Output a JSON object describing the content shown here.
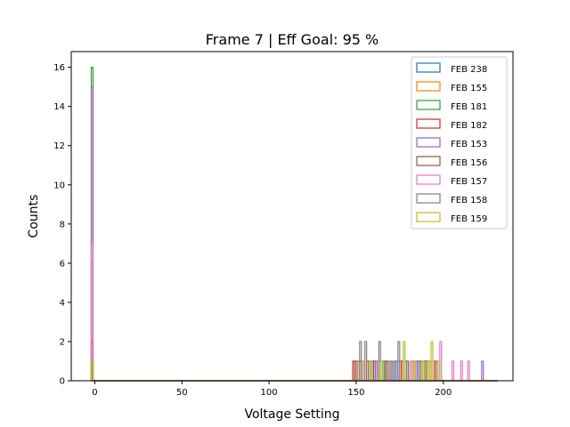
{
  "chart_data": {
    "type": "histogram-step",
    "title": "Frame 7 | Eff Goal: 95 %",
    "xlabel": "Voltage Setting",
    "ylabel": "Counts",
    "xlim": [
      -13.5,
      240
    ],
    "ylim": [
      0,
      16.8
    ],
    "bin_width": 1,
    "x_ticks": [
      0,
      50,
      100,
      150,
      200
    ],
    "y_ticks": [
      0,
      2,
      4,
      6,
      8,
      10,
      12,
      14,
      16
    ],
    "grid": false,
    "legend_position": "upper right",
    "series": [
      {
        "name": "FEB 238",
        "color": "#1f77b4",
        "bins": [
          [
            -2,
            1
          ],
          [
            151,
            1
          ],
          [
            152,
            1
          ],
          [
            158,
            1
          ],
          [
            166,
            1
          ],
          [
            172,
            1
          ],
          [
            184,
            1
          ],
          [
            186,
            1
          ],
          [
            191,
            1
          ]
        ]
      },
      {
        "name": "FEB 155",
        "color": "#ff7f0e",
        "bins": [
          [
            -2,
            6
          ],
          [
            150,
            1
          ],
          [
            154,
            1
          ],
          [
            162,
            1
          ],
          [
            168,
            1
          ],
          [
            175,
            1
          ],
          [
            182,
            1
          ],
          [
            187,
            1
          ],
          [
            193,
            1
          ]
        ]
      },
      {
        "name": "FEB 181",
        "color": "#2ca02c",
        "bins": [
          [
            -2,
            16
          ],
          [
            165,
            1
          ],
          [
            178,
            1
          ],
          [
            188,
            1
          ]
        ]
      },
      {
        "name": "FEB 182",
        "color": "#d62728",
        "bins": [
          [
            -2,
            2
          ],
          [
            148,
            1
          ],
          [
            156,
            1
          ],
          [
            160,
            1
          ],
          [
            167,
            1
          ],
          [
            176,
            1
          ],
          [
            183,
            1
          ],
          [
            189,
            1
          ],
          [
            195,
            1
          ]
        ]
      },
      {
        "name": "FEB 153",
        "color": "#9467bd",
        "bins": [
          [
            -2,
            15
          ],
          [
            161,
            1
          ],
          [
            173,
            1
          ],
          [
            185,
            1
          ],
          [
            196,
            1
          ],
          [
            222,
            1
          ]
        ]
      },
      {
        "name": "FEB 156",
        "color": "#8c564b",
        "bins": [
          [
            -2,
            1
          ],
          [
            149,
            1
          ],
          [
            159,
            1
          ],
          [
            170,
            1
          ],
          [
            179,
            1
          ],
          [
            190,
            1
          ]
        ]
      },
      {
        "name": "FEB 157",
        "color": "#e377c2",
        "bins": [
          [
            -2,
            7
          ],
          [
            163,
            1
          ],
          [
            174,
            1
          ],
          [
            181,
            1
          ],
          [
            192,
            1
          ],
          [
            198,
            2
          ],
          [
            205,
            1
          ],
          [
            210,
            1
          ],
          [
            214,
            1
          ]
        ]
      },
      {
        "name": "FEB 158",
        "color": "#7f7f7f",
        "bins": [
          [
            -2,
            1
          ],
          [
            152,
            2
          ],
          [
            155,
            2
          ],
          [
            157,
            1
          ],
          [
            163,
            2
          ],
          [
            168,
            1
          ],
          [
            174,
            2
          ],
          [
            179,
            1
          ],
          [
            186,
            1
          ],
          [
            230,
            0
          ]
        ]
      },
      {
        "name": "FEB 159",
        "color": "#bcbd22",
        "bins": [
          [
            -2,
            1
          ],
          [
            158,
            1
          ],
          [
            164,
            1
          ],
          [
            177,
            2
          ],
          [
            183,
            1
          ],
          [
            188,
            1
          ],
          [
            191,
            1
          ],
          [
            193,
            2
          ],
          [
            197,
            1
          ]
        ]
      }
    ]
  }
}
